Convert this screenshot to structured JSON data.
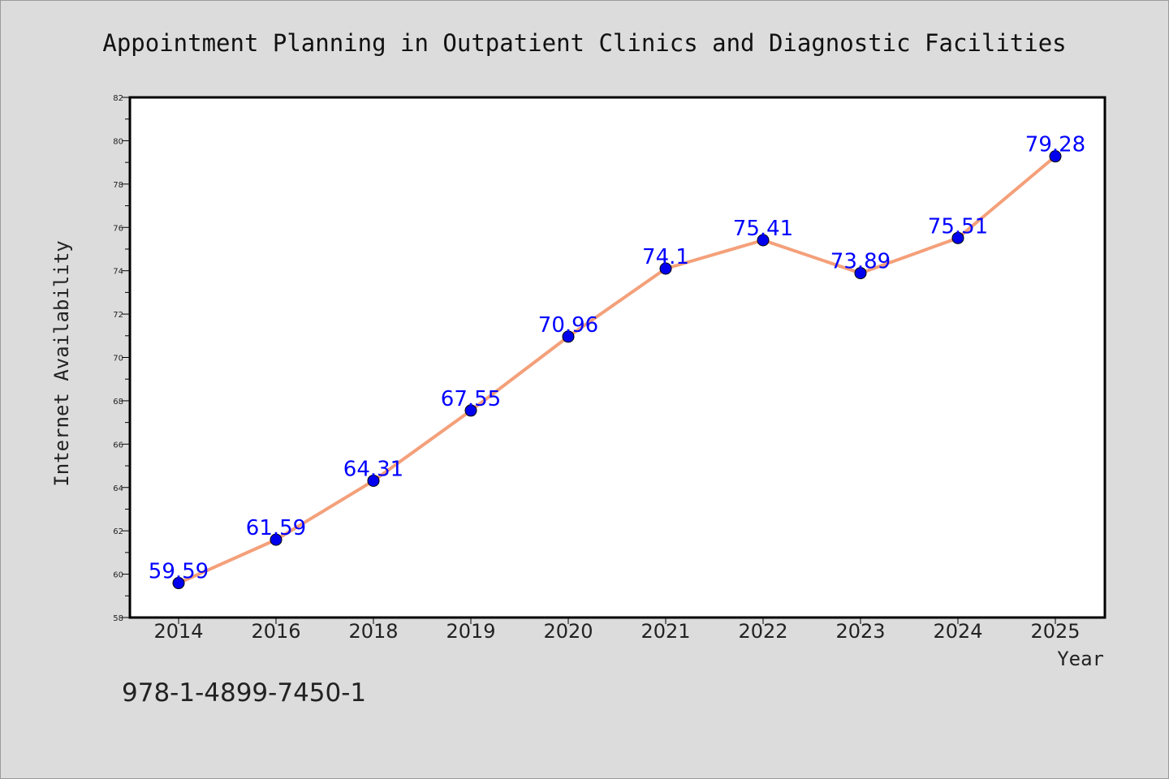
{
  "chart_data": {
    "type": "line",
    "title": "Appointment Planning in Outpatient Clinics and Diagnostic Facilities",
    "xlabel": "Year",
    "ylabel": "Internet Availability",
    "categories": [
      "2014",
      "2016",
      "2018",
      "2019",
      "2020",
      "2021",
      "2022",
      "2023",
      "2024",
      "2025"
    ],
    "series": [
      {
        "values": [
          59.59,
          61.59,
          64.31,
          67.55,
          70.96,
          74.1,
          75.41,
          73.89,
          75.51,
          79.28
        ],
        "data_labels": [
          "59.59",
          "61.59",
          "64.31",
          "67.55",
          "70.96",
          "74.1",
          "75.41",
          "73.89",
          "75.51",
          "79.28"
        ]
      }
    ],
    "ylim": [
      58,
      82
    ],
    "yticks": [
      "58",
      "60",
      "62",
      "64",
      "66",
      "68",
      "70",
      "72",
      "74",
      "76",
      "78",
      "80",
      "82"
    ],
    "grid": false,
    "legend": "none",
    "colors": {
      "line": "#f4a07a",
      "marker": "#0000ee",
      "label": "#0000ff",
      "background": "#dcdcdc",
      "plot_area": "#ffffff"
    }
  },
  "footer_code": "978-1-4899-7450-1"
}
